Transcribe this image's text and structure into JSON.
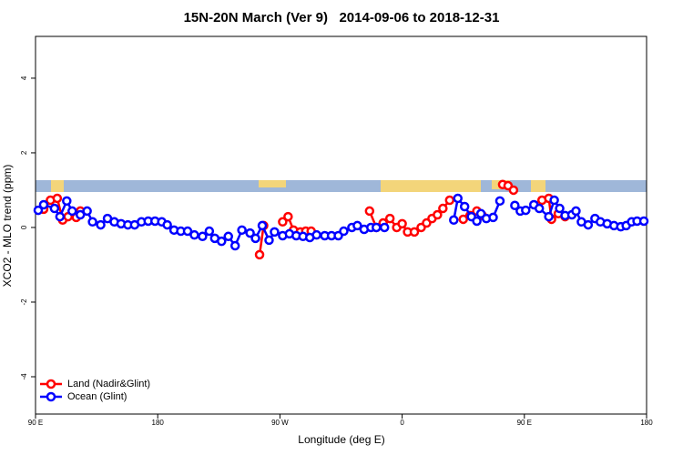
{
  "chart_data": {
    "type": "line",
    "title": "15N-20N March (Ver 9)   2014-09-06 to 2018-12-31",
    "xlabel": "Longitude (deg E)",
    "ylabel": "XCO2 - MLO trend (ppm)",
    "xlim": [
      90,
      540
    ],
    "ylim": [
      -5,
      5.12
    ],
    "xticks": [
      {
        "value": 90,
        "label": "90 E"
      },
      180,
      {
        "value": 270,
        "label": "90 W"
      },
      {
        "value": 360,
        "label": "0"
      },
      {
        "value": 450,
        "label": "90 E"
      },
      {
        "value": 540,
        "label": "180"
      }
    ],
    "yticks": [
      -4,
      -2,
      0,
      2,
      4
    ],
    "legend": "bottom-left",
    "series": [
      {
        "name": "Land (Nadir&Glint)",
        "color": "#ff0000",
        "x": [
          96,
          101,
          106,
          110,
          114,
          120,
          123,
          null,
          255,
          258,
          null,
          272,
          276,
          280,
          285,
          289,
          293,
          null,
          336,
          341,
          346,
          351,
          356,
          360,
          364,
          369,
          374,
          378,
          382,
          386,
          390,
          395,
          null,
          405,
          410,
          415,
          419,
          null,
          434,
          438,
          442,
          null,
          460,
          463,
          468,
          470,
          475,
          480
        ],
        "values": [
          0.49,
          0.73,
          0.78,
          0.2,
          0.29,
          0.27,
          0.44,
          null,
          -0.73,
          0.05,
          null,
          0.15,
          0.29,
          -0.07,
          -0.12,
          -0.1,
          -0.1,
          null,
          0.44,
          0,
          0.12,
          0.24,
          0,
          0.1,
          -0.12,
          -0.12,
          0,
          0.12,
          0.24,
          0.34,
          0.51,
          0.73,
          null,
          0.22,
          0.32,
          0.44,
          0.32,
          null,
          1.15,
          1.12,
          1.0,
          null,
          0.59,
          0.73,
          0.78,
          0.22,
          0.37,
          0.29
        ]
      },
      {
        "name": "Ocean (Glint)",
        "color": "#0000ff",
        "x": [
          92,
          96,
          104,
          108,
          113,
          117,
          123,
          128,
          132,
          138,
          143,
          148,
          153,
          158,
          163,
          168,
          173,
          178,
          183,
          187,
          192,
          197,
          202,
          207,
          213,
          218,
          222,
          227,
          232,
          237,
          242,
          248,
          252,
          257,
          262,
          266,
          272,
          277,
          282,
          287,
          292,
          297,
          303,
          308,
          313,
          317,
          323,
          327,
          332,
          337,
          341,
          347,
          null,
          398,
          401,
          406,
          411,
          415,
          418,
          422,
          427,
          432,
          null,
          443,
          447,
          451,
          457,
          461,
          468,
          472,
          476,
          480,
          485,
          488,
          492,
          497,
          502,
          506,
          511,
          516,
          521,
          525,
          529,
          533,
          538
        ],
        "values": [
          0.46,
          0.61,
          0.51,
          0.29,
          0.71,
          0.44,
          0.34,
          0.44,
          0.15,
          0.07,
          0.24,
          0.15,
          0.1,
          0.07,
          0.07,
          0.15,
          0.17,
          0.17,
          0.15,
          0.07,
          -0.07,
          -0.1,
          -0.1,
          -0.2,
          -0.24,
          -0.1,
          -0.29,
          -0.37,
          -0.24,
          -0.49,
          -0.07,
          -0.15,
          -0.29,
          0.05,
          -0.34,
          -0.12,
          -0.22,
          -0.17,
          -0.22,
          -0.24,
          -0.27,
          -0.2,
          -0.22,
          -0.22,
          -0.22,
          -0.1,
          0,
          0.05,
          -0.05,
          0,
          0,
          0,
          null,
          0.2,
          0.78,
          0.56,
          0.29,
          0.17,
          0.37,
          0.24,
          0.27,
          0.71,
          null,
          0.59,
          0.44,
          0.46,
          0.61,
          0.51,
          0.29,
          0.73,
          0.51,
          0.32,
          0.34,
          0.44,
          0.15,
          0.07,
          0.24,
          0.15,
          0.1,
          0.05,
          0.02,
          0.05,
          0.15,
          0.17,
          0.17
        ]
      }
    ]
  }
}
